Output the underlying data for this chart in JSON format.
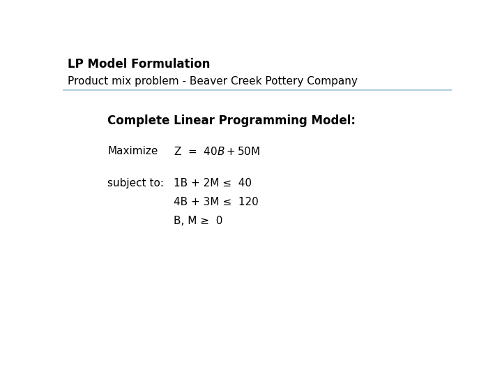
{
  "title_line1": "LP Model Formulation",
  "title_line2": "Product mix problem - Beaver Creek Pottery Company",
  "section_header": "Complete Linear Programming Model:",
  "maximize_label": "Maximize",
  "maximize_expr": "Z  =  $40B + $50M",
  "subject_label": "subject to:",
  "constraint1": "1B + 2M ≤  40",
  "constraint2": "4B + 3M ≤  120",
  "constraint3": "B, M ≥  0",
  "bg_color": "#ffffff",
  "line_color": "#b0d0e0",
  "title1_color": "#000000",
  "title2_color": "#000000",
  "body_color": "#000000",
  "title1_fontsize": 12,
  "title2_fontsize": 11,
  "header_fontsize": 12,
  "body_fontsize": 11
}
